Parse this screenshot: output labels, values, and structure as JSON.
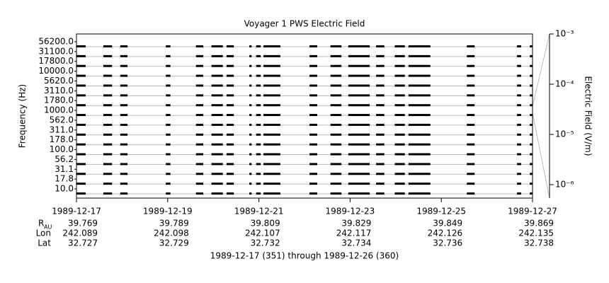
{
  "chart_data": {
    "type": "coverage",
    "title": "Voyager 1 PWS Electric Field",
    "ylabel": "Frequency (Hz)",
    "y2label": "Electric Field (V/m)",
    "categories": [
      "10.0",
      "17.8",
      "31.1",
      "56.2",
      "100.0",
      "178.0",
      "311.0",
      "562.0",
      "1000.0",
      "1780.0",
      "3110.0",
      "5620.0",
      "10000.0",
      "17800.0",
      "31100.0",
      "56200.0"
    ],
    "xlim": [
      351,
      361
    ],
    "xticks": [
      {
        "value": 351,
        "label": "1989-12-17"
      },
      {
        "value": 353,
        "label": "1989-12-19"
      },
      {
        "value": 355,
        "label": "1989-12-21"
      },
      {
        "value": 357,
        "label": "1989-12-23"
      },
      {
        "value": 359,
        "label": "1989-12-25"
      },
      {
        "value": 361,
        "label": "1989-12-27"
      }
    ],
    "segments": [
      [
        351.0,
        351.2
      ],
      [
        351.59,
        351.78
      ],
      [
        351.96,
        352.12
      ],
      [
        352.96,
        353.06
      ],
      [
        353.62,
        353.78
      ],
      [
        353.96,
        354.21
      ],
      [
        354.29,
        354.45
      ],
      [
        354.79,
        354.84
      ],
      [
        354.94,
        355.04
      ],
      [
        355.1,
        355.47
      ],
      [
        356.11,
        356.28
      ],
      [
        356.57,
        356.81
      ],
      [
        356.96,
        357.43
      ],
      [
        357.57,
        357.75
      ],
      [
        357.98,
        358.2
      ],
      [
        358.28,
        358.76
      ],
      [
        359.56,
        359.73
      ],
      [
        360.66,
        360.75
      ],
      [
        360.94,
        361.0
      ]
    ],
    "color": "#000000",
    "y2log": true,
    "y2lim": [
      5.4e-07,
      0.001
    ],
    "y2ticks": [
      {
        "value": 0.001,
        "label": "10⁻³"
      },
      {
        "value": 0.0001,
        "label": "10⁻⁴"
      },
      {
        "value": 1e-05,
        "label": "10⁻⁵"
      },
      {
        "value": 1e-06,
        "label": "10⁻⁶"
      }
    ],
    "ephemeris": [
      {
        "label": "R",
        "sub": "AU",
        "values": [
          39.769,
          39.789,
          39.809,
          39.829,
          39.849,
          39.869
        ]
      },
      {
        "label": "Lon",
        "values": [
          242.089,
          242.098,
          242.107,
          242.117,
          242.126,
          242.135
        ]
      },
      {
        "label": "Lat",
        "values": [
          32.727,
          32.729,
          32.732,
          32.734,
          32.736,
          32.738
        ]
      }
    ],
    "footer": "1989-12-17 (351) through 1989-12-26 (360)"
  }
}
